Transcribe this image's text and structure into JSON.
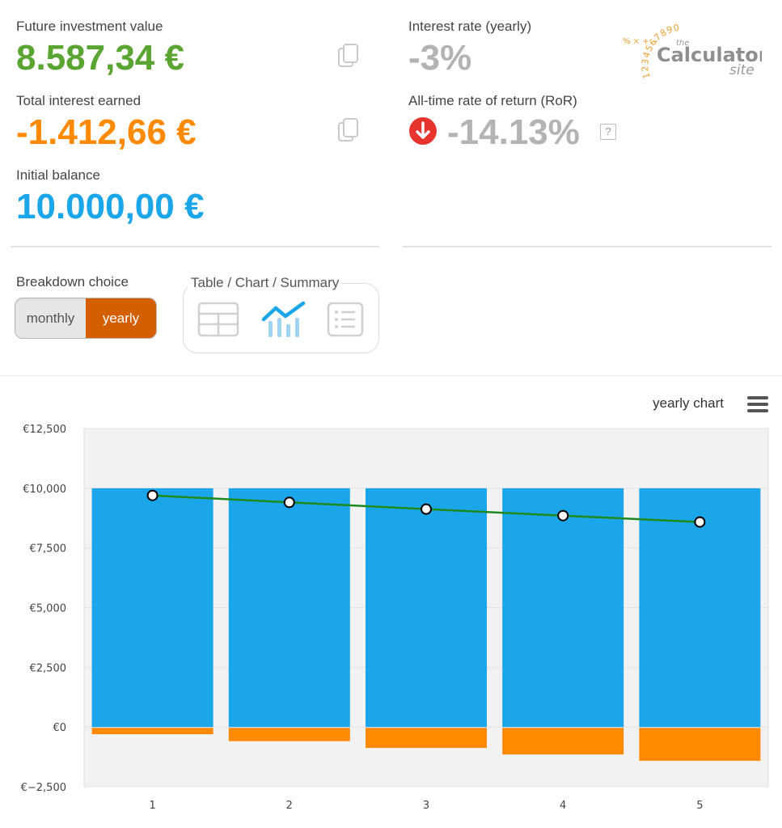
{
  "summary": {
    "future_value": {
      "label": "Future investment value",
      "value": "8.587,34 €"
    },
    "total_interest": {
      "label": "Total interest earned",
      "value": "-1.412,66 €"
    },
    "initial_balance": {
      "label": "Initial balance",
      "value": "10.000,00 €"
    },
    "interest_rate": {
      "label": "Interest rate (yearly)",
      "value": "-3%"
    },
    "ror": {
      "label": "All-time rate of return (RoR)",
      "value": "-14.13%",
      "help": "?"
    }
  },
  "logo": {
    "digits": "1234567890",
    "the": "the",
    "name": "Calculator",
    "site": "site"
  },
  "breakdown": {
    "label": "Breakdown choice",
    "options": [
      "monthly",
      "yearly"
    ],
    "selected": "yearly"
  },
  "views": {
    "legend": "Table / Chart / Summary",
    "items": [
      "table-icon",
      "chart-icon",
      "list-icon"
    ],
    "active": "chart-icon"
  },
  "chart_title": "yearly chart",
  "colors": {
    "green": "#5aa532",
    "orange": "#ff8a00",
    "blue": "#1aa6e8",
    "red": "#e8342e",
    "toggle_active": "#d35f00",
    "line": "#1e8a1e"
  },
  "chart_data": {
    "type": "bar",
    "stacked": true,
    "categories": [
      "1",
      "2",
      "3",
      "4",
      "5"
    ],
    "series": [
      {
        "type": "bar",
        "values": [
          10000,
          10000,
          10000,
          10000,
          10000
        ],
        "color": "#1aa6e8"
      },
      {
        "type": "bar",
        "values": [
          -300,
          -591,
          -873,
          -1147,
          -1413
        ],
        "color": "#ff8a00"
      },
      {
        "type": "line",
        "values": [
          9700,
          9409,
          9127,
          8853,
          8587
        ],
        "color": "#1e8a1e"
      }
    ],
    "yticks": [
      "€12,500",
      "€10,000",
      "€7,500",
      "€5,000",
      "€2,500",
      "€0",
      "€−2,500"
    ],
    "ylim": [
      -2500,
      12500
    ],
    "grid": true,
    "legend": "none"
  }
}
